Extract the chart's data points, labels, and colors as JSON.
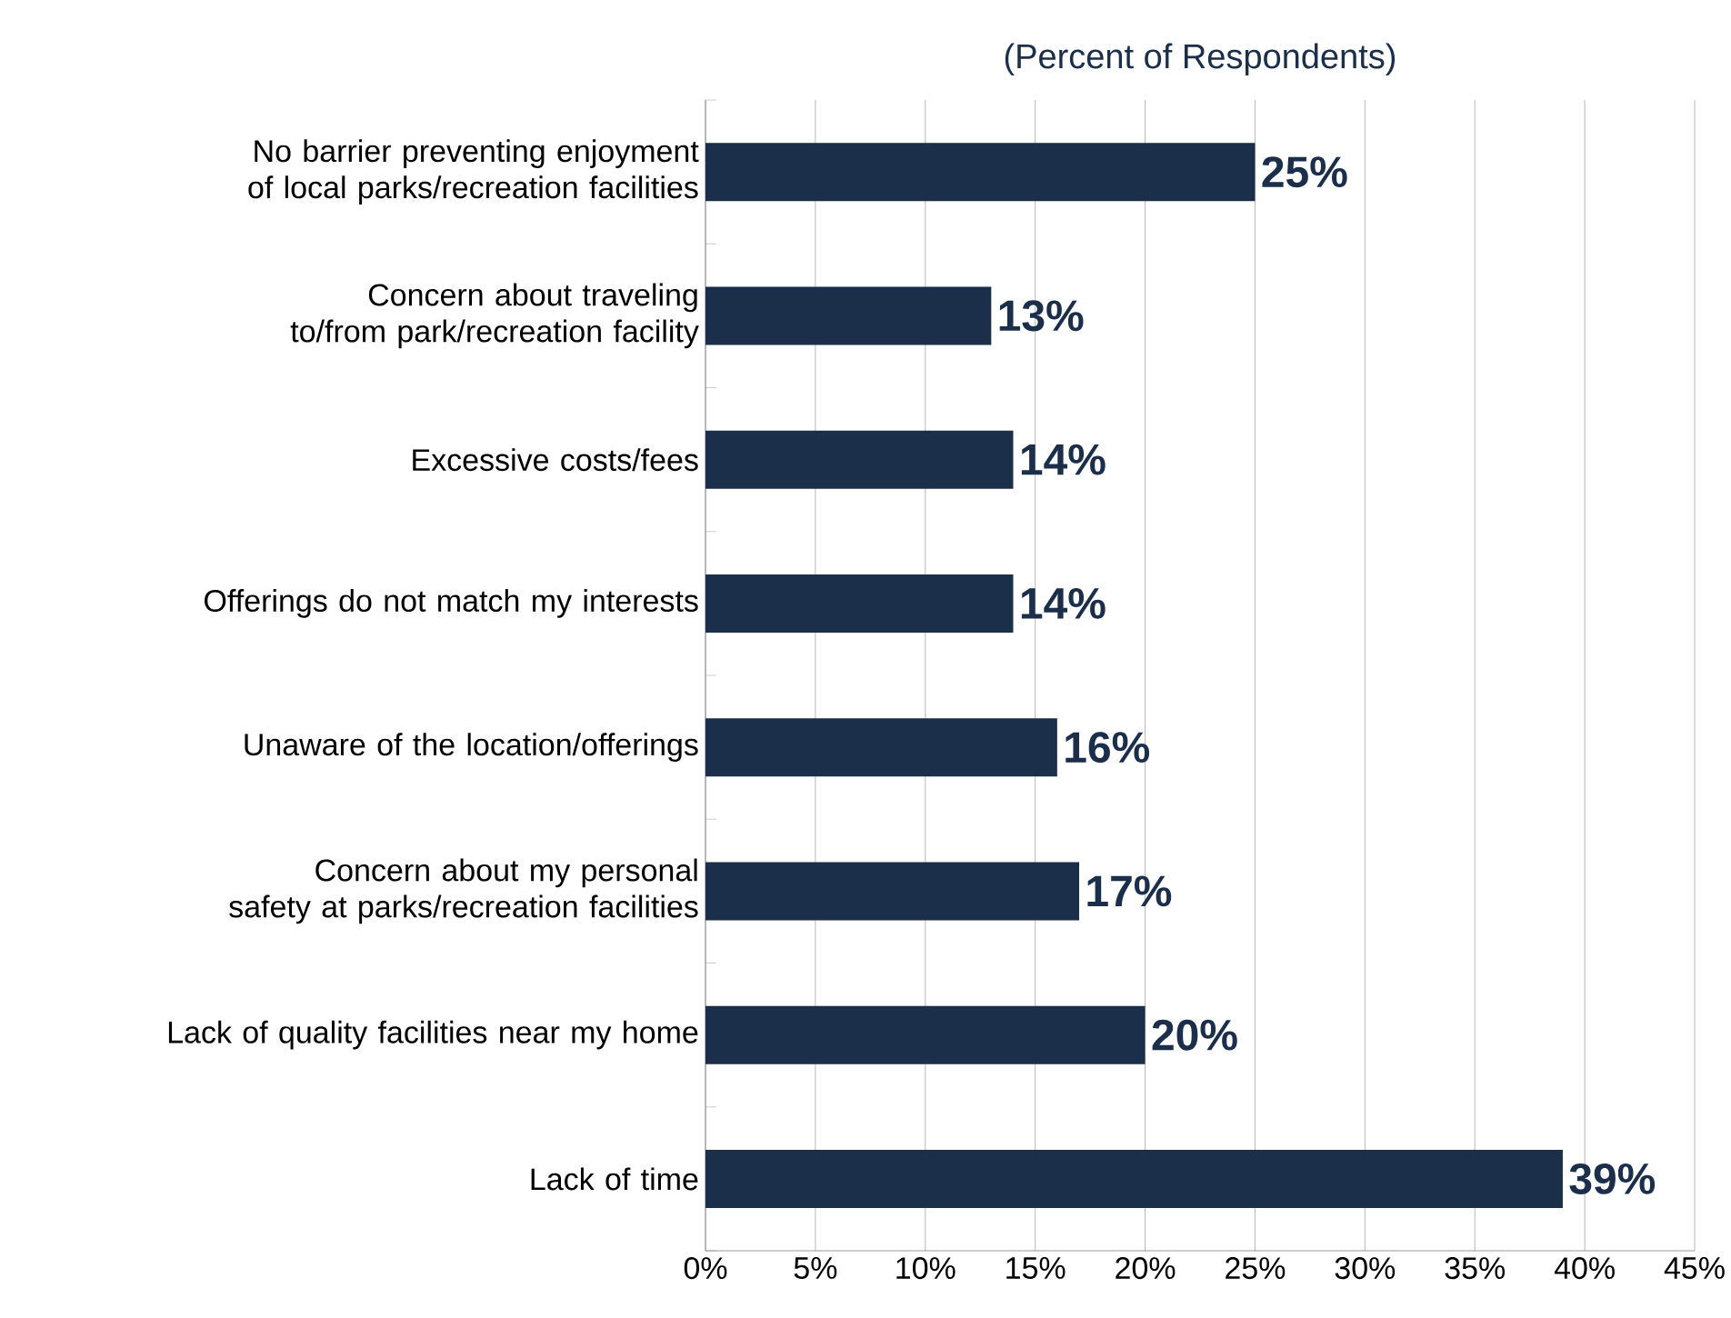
{
  "chart_data": {
    "type": "bar",
    "orientation": "horizontal",
    "title": "(Percent of Respondents)",
    "categories": [
      "No barrier preventing enjoyment of local parks/recreation facilities",
      "Concern about traveling to/from park/recreation facility",
      "Excessive costs/fees",
      "Offerings do not match my interests",
      "Unaware of the location/offerings",
      "Concern about my personal safety at parks/recreation facilities",
      "Lack of quality facilities near my home",
      "Lack of time"
    ],
    "values": [
      25,
      13,
      14,
      14,
      16,
      17,
      20,
      39
    ],
    "value_labels": [
      "25%",
      "13%",
      "14%",
      "14%",
      "16%",
      "17%",
      "20%",
      "39%"
    ],
    "color": "#1b2f4b",
    "xlim": [
      0,
      45
    ],
    "xticks": [
      {
        "value": 0,
        "label": "0%"
      },
      {
        "value": 5,
        "label": "5%"
      },
      {
        "value": 10,
        "label": "10%"
      },
      {
        "value": 15,
        "label": "15%"
      },
      {
        "value": 20,
        "label": "20%"
      },
      {
        "value": 25,
        "label": "25%"
      },
      {
        "value": 30,
        "label": "30%"
      },
      {
        "value": 35,
        "label": "35%"
      },
      {
        "value": 40,
        "label": "40%"
      },
      {
        "value": 45,
        "label": "45%"
      }
    ],
    "grid": "x"
  }
}
